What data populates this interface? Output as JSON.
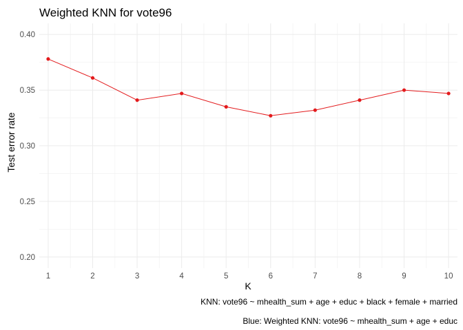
{
  "chart_data": {
    "type": "line",
    "title": "Weighted KNN for vote96",
    "xlabel": "K",
    "ylabel": "Test error rate",
    "x": [
      1,
      2,
      3,
      4,
      5,
      6,
      7,
      8,
      9,
      10
    ],
    "series": [
      {
        "values": [
          0.378,
          0.361,
          0.341,
          0.347,
          0.335,
          0.327,
          0.332,
          0.341,
          0.35,
          0.347
        ],
        "color": "#e31a1c"
      }
    ],
    "xticks": [
      "1",
      "2",
      "3",
      "4",
      "5",
      "6",
      "7",
      "8",
      "9",
      "10"
    ],
    "yticks": [
      "0.20",
      "0.25",
      "0.30",
      "0.35",
      "0.40"
    ],
    "xlim": [
      0.8,
      10.2
    ],
    "ylim": [
      0.19,
      0.41
    ],
    "grid": true,
    "captions": [
      "KNN: vote96 ~ mhealth_sum + age + educ + black + female + married",
      "Blue: Weighted KNN: vote96 ~ mhealth_sum + age + educ"
    ]
  }
}
